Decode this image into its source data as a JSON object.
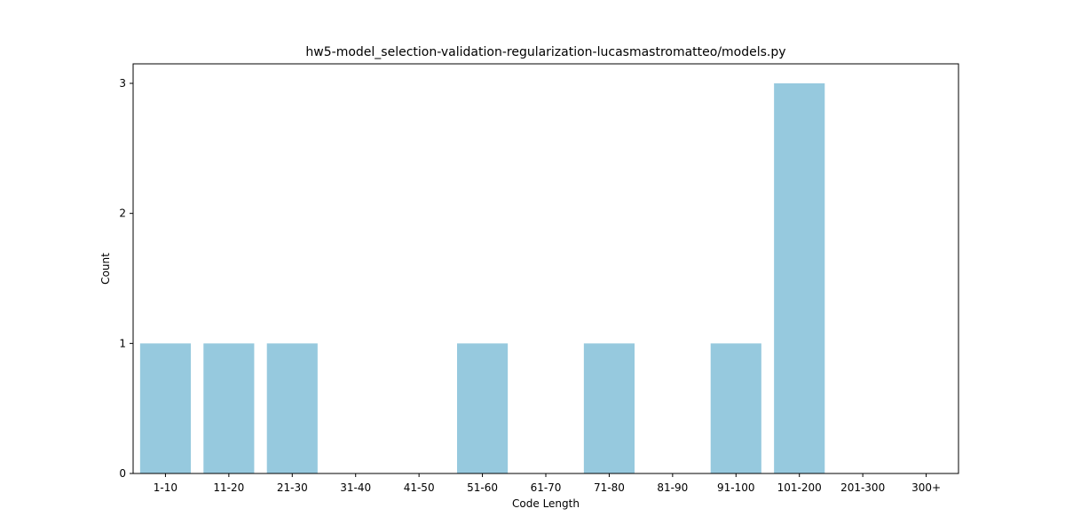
{
  "chart_data": {
    "type": "bar",
    "title": "hw5-model_selection-validation-regularization-lucasmastromatteo/models.py",
    "xlabel": "Code Length",
    "ylabel": "Count",
    "categories": [
      "1-10",
      "11-20",
      "21-30",
      "31-40",
      "41-50",
      "51-60",
      "61-70",
      "71-80",
      "81-90",
      "91-100",
      "101-200",
      "201-300",
      "300+"
    ],
    "values": [
      1,
      1,
      1,
      0,
      0,
      1,
      0,
      1,
      0,
      1,
      3,
      0,
      0
    ],
    "ylim": [
      0,
      3.15
    ],
    "yticks": [
      0,
      1,
      2,
      3
    ],
    "grid": false,
    "bar_color": "#96c9de"
  }
}
